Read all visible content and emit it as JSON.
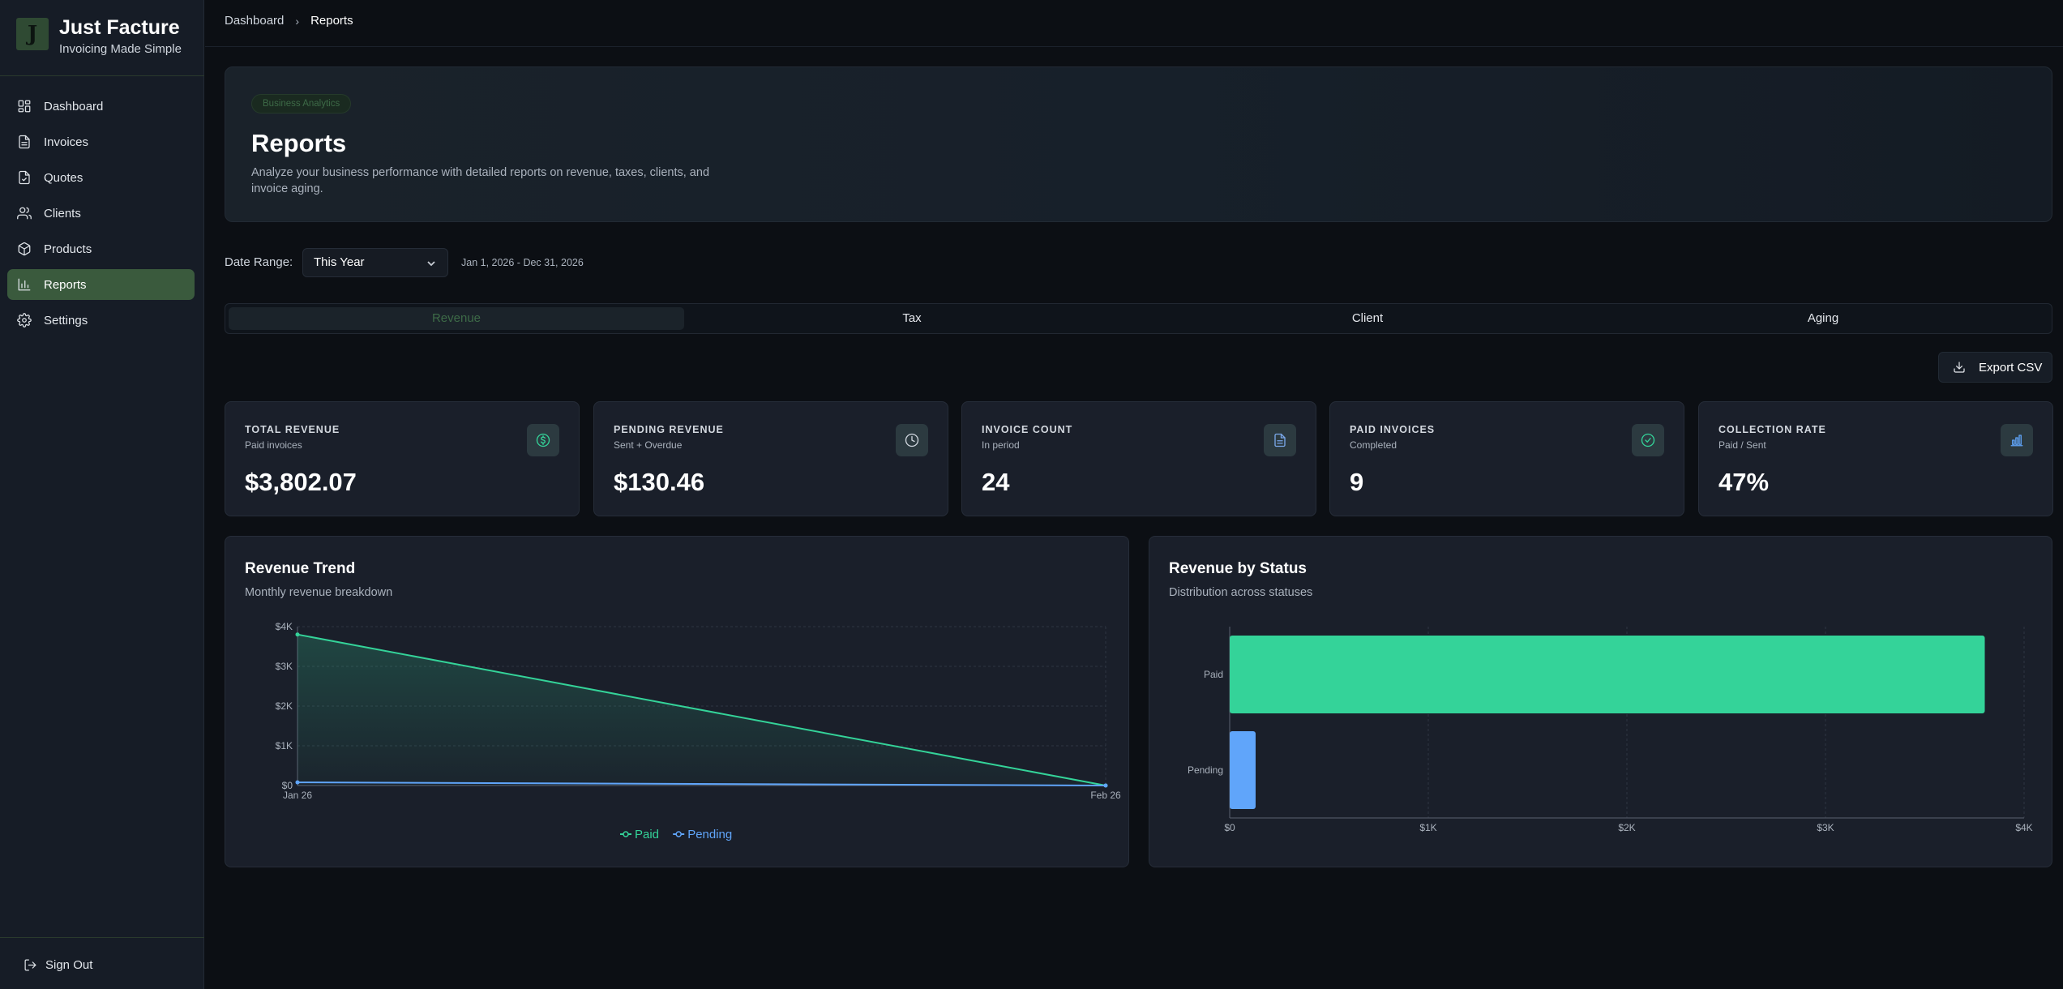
{
  "brand": {
    "logo": "J",
    "title": "Just Facture",
    "subtitle": "Invoicing Made Simple"
  },
  "nav": [
    {
      "label": "Dashboard",
      "icon": "dashboard-icon"
    },
    {
      "label": "Invoices",
      "icon": "file-icon"
    },
    {
      "label": "Quotes",
      "icon": "file-check-icon"
    },
    {
      "label": "Clients",
      "icon": "users-icon"
    },
    {
      "label": "Products",
      "icon": "box-icon"
    },
    {
      "label": "Reports",
      "icon": "bar-chart-icon",
      "active": true
    },
    {
      "label": "Settings",
      "icon": "gear-icon"
    }
  ],
  "signout": {
    "label": "Sign Out"
  },
  "breadcrumb": {
    "parent": "Dashboard",
    "current": "Reports"
  },
  "hero": {
    "badge": "Business Analytics",
    "title": "Reports",
    "description": "Analyze your business performance with detailed reports on revenue, taxes, clients, and invoice aging."
  },
  "date_range": {
    "label": "Date Range:",
    "selected": "This Year",
    "range_text": "Jan 1, 2026 - Dec 31, 2026"
  },
  "tabs": [
    {
      "label": "Revenue",
      "active": true
    },
    {
      "label": "Tax"
    },
    {
      "label": "Client"
    },
    {
      "label": "Aging"
    }
  ],
  "export": {
    "label": "Export CSV"
  },
  "stats": [
    {
      "title": "TOTAL REVENUE",
      "sub": "Paid invoices",
      "value": "$3,802.07",
      "icon": "dollar-icon",
      "icon_color": "#34d399"
    },
    {
      "title": "PENDING REVENUE",
      "sub": "Sent + Overdue",
      "value": "$130.46",
      "icon": "clock-icon",
      "icon_color": "#cfd5dd"
    },
    {
      "title": "INVOICE COUNT",
      "sub": "In period",
      "value": "24",
      "icon": "document-icon",
      "icon_color": "#7aa7e8"
    },
    {
      "title": "PAID INVOICES",
      "sub": "Completed",
      "value": "9",
      "icon": "check-circle-icon",
      "icon_color": "#34d399"
    },
    {
      "title": "COLLECTION RATE",
      "sub": "Paid / Sent",
      "value": "47%",
      "icon": "bar-chart-icon",
      "icon_color": "#60a5fa"
    }
  ],
  "revenue_trend": {
    "title": "Revenue Trend",
    "subtitle": "Monthly revenue breakdown"
  },
  "revenue_status": {
    "title": "Revenue by Status",
    "subtitle": "Distribution across statuses"
  },
  "chart_data": [
    {
      "type": "area",
      "title": "Revenue Trend",
      "categories": [
        "Jan 26",
        "Feb 26"
      ],
      "series": [
        {
          "name": "Paid",
          "values": [
            3802.07,
            0
          ],
          "color": "#34d399"
        },
        {
          "name": "Pending",
          "values": [
            80,
            0
          ],
          "color": "#60a5fa"
        }
      ],
      "yticks": [
        "$0",
        "$1K",
        "$2K",
        "$3K",
        "$4K"
      ],
      "ylim": [
        0,
        4000
      ],
      "grid": true,
      "legend": "bottom"
    },
    {
      "type": "bar",
      "orientation": "horizontal",
      "title": "Revenue by Status",
      "categories": [
        "Paid",
        "Pending"
      ],
      "values": [
        3802.07,
        130.46
      ],
      "colors": [
        "#34d399",
        "#60a5fa"
      ],
      "xticks": [
        "$0",
        "$1K",
        "$2K",
        "$3K",
        "$4K"
      ],
      "xlim": [
        0,
        4000
      ],
      "grid": true
    }
  ]
}
